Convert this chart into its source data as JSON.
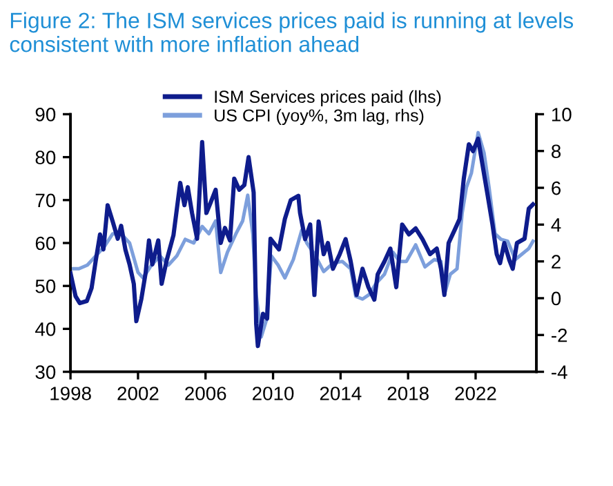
{
  "chart_data": {
    "type": "line",
    "title": "Figure 2: The ISM services prices paid is running at levels consistent with more inflation ahead",
    "xlim": [
      1998,
      2025.6
    ],
    "xticks": [
      1998,
      2002,
      2006,
      2010,
      2014,
      2018,
      2022
    ],
    "ylim": [
      30,
      90
    ],
    "yticks": [
      30,
      40,
      50,
      60,
      70,
      80,
      90
    ],
    "y2lim": [
      -4,
      10
    ],
    "y2ticks": [
      -4,
      -2,
      0,
      2,
      4,
      6,
      8,
      10
    ],
    "legend": "top",
    "grid": false,
    "marker": "none",
    "line_style": "solid",
    "series": [
      {
        "name": "ISM Services prices paid (lhs)",
        "color": "#0e1c8c",
        "x": [
          1998.0,
          1998.3,
          1998.55,
          1998.97,
          1999.25,
          1999.5,
          1999.75,
          1999.95,
          2000.2,
          2000.5,
          2000.8,
          2001.0,
          2001.25,
          2001.5,
          2001.75,
          2001.9,
          2002.2,
          2002.45,
          2002.65,
          2002.85,
          2003.2,
          2003.4,
          2003.7,
          2004.1,
          2004.5,
          2004.75,
          2004.95,
          2005.2,
          2005.5,
          2005.8,
          2006.05,
          2006.3,
          2006.6,
          2006.9,
          2007.15,
          2007.45,
          2007.7,
          2008.0,
          2008.3,
          2008.55,
          2008.85,
          2009.0,
          2009.1,
          2009.4,
          2009.65,
          2009.85,
          2010.35,
          2010.7,
          2011.05,
          2011.5,
          2011.6,
          2011.9,
          2012.2,
          2012.45,
          2012.7,
          2013.0,
          2013.25,
          2013.55,
          2013.95,
          2014.3,
          2014.6,
          2014.95,
          2015.3,
          2015.65,
          2016.0,
          2016.2,
          2016.6,
          2016.95,
          2017.3,
          2017.65,
          2018.05,
          2018.45,
          2018.85,
          2019.3,
          2019.7,
          2019.95,
          2020.15,
          2020.4,
          2020.8,
          2021.05,
          2021.3,
          2021.6,
          2021.85,
          2022.15,
          2022.4,
          2022.7,
          2023.0,
          2023.25,
          2023.45,
          2023.7,
          2024.0,
          2024.2,
          2024.45,
          2024.9,
          2025.15,
          2025.4
        ],
        "values": [
          53,
          47.6,
          46,
          46.5,
          49.5,
          56,
          62,
          58.5,
          68.8,
          65,
          61,
          64,
          58.5,
          55,
          50.5,
          41.8,
          47,
          53,
          60.6,
          55,
          60.6,
          50.5,
          56,
          61.8,
          74,
          68.8,
          73,
          67,
          61,
          83.5,
          67,
          69.4,
          72.4,
          60,
          63.5,
          60.6,
          75,
          72.4,
          73.5,
          80,
          71.8,
          41.2,
          36,
          43.5,
          42.4,
          61,
          58.5,
          65.6,
          70,
          71,
          67,
          60.9,
          64.3,
          47.9,
          65,
          57.4,
          60,
          54,
          57.4,
          60.9,
          55.7,
          47.9,
          54,
          49.7,
          46.8,
          52.7,
          55.7,
          58.7,
          49.7,
          64.3,
          62,
          63.4,
          60.9,
          57.4,
          58.7,
          54,
          47.9,
          60,
          63.4,
          65.6,
          75,
          83,
          81.4,
          84.3,
          78.4,
          71.4,
          64.3,
          57.4,
          55.3,
          60,
          56,
          54,
          60,
          61,
          68,
          69
        ]
      },
      {
        "name": "US CPI (yoy%, 3m lag, rhs)",
        "color": "#7d9fdc",
        "axis": "y2",
        "x": [
          1998.0,
          1998.5,
          1999.0,
          1999.5,
          2000.0,
          2000.5,
          2001.0,
          2001.5,
          2002.0,
          2002.3,
          2002.8,
          2003.3,
          2003.8,
          2004.3,
          2004.8,
          2005.3,
          2005.8,
          2006.2,
          2006.6,
          2006.9,
          2007.3,
          2007.8,
          2008.2,
          2008.5,
          2008.8,
          2009.0,
          2009.3,
          2009.6,
          2009.9,
          2010.3,
          2010.7,
          2011.2,
          2011.7,
          2012.0,
          2012.45,
          2013.0,
          2013.55,
          2014.1,
          2014.6,
          2014.9,
          2015.3,
          2015.7,
          2016.1,
          2016.6,
          2017.1,
          2017.5,
          2017.9,
          2018.45,
          2019.0,
          2019.55,
          2019.95,
          2020.15,
          2020.5,
          2020.9,
          2021.2,
          2021.45,
          2021.75,
          2022.15,
          2022.5,
          2022.8,
          2023.15,
          2023.5,
          2023.9,
          2024.35,
          2024.75,
          2025.15,
          2025.4
        ],
        "values": [
          1.6,
          1.6,
          1.8,
          2.3,
          2.8,
          3.5,
          3.5,
          3.0,
          1.4,
          1.1,
          1.8,
          2.3,
          1.8,
          2.3,
          3.2,
          3.0,
          3.9,
          3.5,
          4.2,
          1.4,
          2.5,
          3.5,
          4.2,
          5.6,
          3.5,
          0.2,
          -2.1,
          -1.2,
          2.3,
          1.8,
          1.1,
          2.1,
          3.7,
          3.0,
          2.4,
          1.45,
          1.9,
          2.0,
          1.6,
          0.1,
          -0.05,
          0.2,
          0.8,
          1.3,
          2.5,
          2.0,
          2.0,
          2.9,
          1.7,
          2.1,
          2.0,
          0.2,
          1.3,
          1.6,
          4.6,
          6.0,
          6.8,
          9.0,
          7.9,
          6.0,
          3.5,
          3.2,
          3.1,
          2.1,
          2.4,
          2.7,
          3.1
        ]
      }
    ]
  }
}
